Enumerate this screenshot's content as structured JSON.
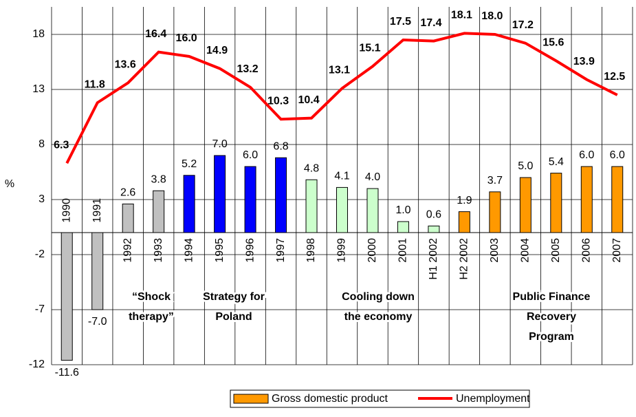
{
  "chart_data": {
    "type": "bar_line",
    "y_label": "%",
    "categories": [
      "1990",
      "1991",
      "1992",
      "1993",
      "1994",
      "1995",
      "1996",
      "1997",
      "1998",
      "1999",
      "2000",
      "2001",
      "H1 2002",
      "H2 2002",
      "2003",
      "2004",
      "2005",
      "2006",
      "2007"
    ],
    "series": [
      {
        "name": "Gross domestic product",
        "type": "bar",
        "color": "#ff9900",
        "colors": [
          "#c0c0c0",
          "#c0c0c0",
          "#c0c0c0",
          "#c0c0c0",
          "#0000ff",
          "#0000ff",
          "#0000ff",
          "#0000ff",
          "#ccffcc",
          "#ccffcc",
          "#ccffcc",
          "#ccffcc",
          "#ccffcc",
          "#ff9900",
          "#ff9900",
          "#ff9900",
          "#ff9900",
          "#ff9900",
          "#ff9900"
        ],
        "values": [
          -11.6,
          -7.0,
          2.6,
          3.8,
          5.2,
          7.0,
          6.0,
          6.8,
          4.8,
          4.1,
          4.0,
          1.0,
          0.6,
          1.9,
          3.7,
          5.0,
          5.4,
          6.0,
          6.0
        ],
        "value_labels": [
          "-11.6",
          "-7.0",
          "2.6",
          "3.8",
          "5.2",
          "7.0",
          "6.0",
          "6.8",
          "4.8",
          "4.1",
          "4.0",
          "1.0",
          "0.6",
          "1.9",
          "3.7",
          "5.0",
          "5.4",
          "6.0",
          "6.0"
        ]
      },
      {
        "name": "Unemployment",
        "type": "line",
        "color": "#ff0000",
        "values": [
          6.3,
          11.8,
          13.6,
          16.4,
          16.0,
          14.9,
          13.2,
          10.3,
          10.4,
          13.1,
          15.1,
          17.5,
          17.4,
          18.1,
          18.0,
          17.2,
          15.6,
          13.9,
          12.5
        ],
        "value_labels": [
          "6.3",
          "11.8",
          "13.6",
          "16.4",
          "16.0",
          "14.9",
          "13.2",
          "10.3",
          "10.4",
          "13.1",
          "15.1",
          "17.5",
          "17.4",
          "18.1",
          "18.0",
          "17.2",
          "15.6",
          "13.9",
          "12.5"
        ]
      }
    ],
    "annotations": [
      {
        "lines": [
          "“Shock",
          "therapy”"
        ]
      },
      {
        "lines": [
          "Strategy for",
          "Poland"
        ]
      },
      {
        "lines": [
          "Cooling down",
          "the economy"
        ]
      },
      {
        "lines": [
          "Public Finance",
          "Recovery",
          "Program"
        ]
      }
    ],
    "ylim": [
      -12,
      20.5
    ],
    "yticks": [
      -12,
      -7,
      -2,
      3,
      8,
      13,
      18
    ],
    "grid": true,
    "legend": "bottom"
  }
}
